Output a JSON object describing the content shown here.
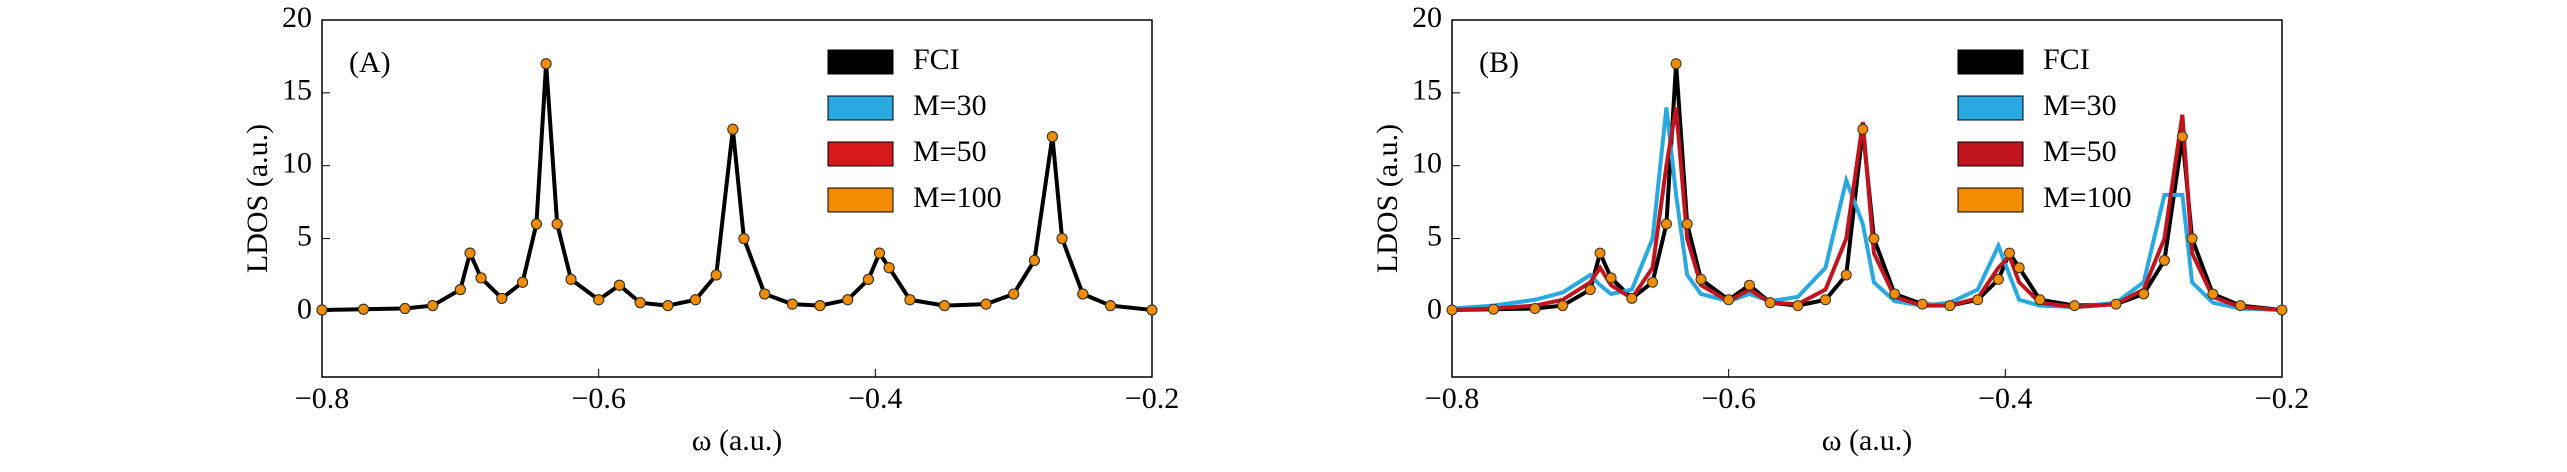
{
  "chart_data": [
    {
      "type": "line",
      "annotation": "(A)",
      "xlabel": "ω (a.u.)",
      "ylabel": "LDOS (a.u.)",
      "xlim": [
        -0.8,
        -0.2
      ],
      "ylim": [
        -4.5,
        20
      ],
      "xticks": [
        {
          "value": -0.8,
          "label": "−0.8"
        },
        {
          "value": -0.6,
          "label": "−0.6"
        },
        {
          "value": -0.4,
          "label": "−0.4"
        },
        {
          "value": -0.2,
          "label": "−0.2"
        }
      ],
      "yticks": [
        0,
        5,
        10,
        15,
        20
      ],
      "legend": "upper right",
      "x": [
        -0.8,
        -0.77,
        -0.74,
        -0.72,
        -0.7,
        -0.693,
        -0.685,
        -0.67,
        -0.655,
        -0.645,
        -0.638,
        -0.63,
        -0.62,
        -0.6,
        -0.585,
        -0.57,
        -0.55,
        -0.53,
        -0.515,
        -0.503,
        -0.495,
        -0.48,
        -0.46,
        -0.44,
        -0.42,
        -0.405,
        -0.397,
        -0.39,
        -0.375,
        -0.35,
        -0.32,
        -0.3,
        -0.285,
        -0.272,
        -0.265,
        -0.25,
        -0.23,
        -0.2
      ],
      "series": [
        {
          "name": "FCI",
          "color": "#000000",
          "style": "line",
          "values": [
            0.1,
            0.15,
            0.2,
            0.4,
            1.5,
            4,
            2.3,
            0.9,
            2,
            6,
            17,
            6,
            2.2,
            0.8,
            1.8,
            0.6,
            0.4,
            0.8,
            2.5,
            12.5,
            5,
            1.2,
            0.5,
            0.4,
            0.8,
            2.2,
            4,
            3,
            0.8,
            0.4,
            0.5,
            1.2,
            3.5,
            12,
            5,
            1.2,
            0.4,
            0.1
          ]
        },
        {
          "name": "M=30",
          "color": "#29a9e0",
          "style": "markers",
          "values": [
            0.1,
            0.15,
            0.2,
            0.4,
            1.5,
            4,
            2.3,
            0.9,
            2,
            6,
            17,
            6,
            2.2,
            0.8,
            1.8,
            0.6,
            0.4,
            0.8,
            2.5,
            12.5,
            5,
            1.2,
            0.5,
            0.4,
            0.8,
            2.2,
            4,
            3,
            0.8,
            0.4,
            0.5,
            1.2,
            3.5,
            12,
            5,
            1.2,
            0.4,
            0.1
          ]
        },
        {
          "name": "M=50",
          "color": "#d7191c",
          "style": "markers",
          "values": [
            0.1,
            0.15,
            0.2,
            0.4,
            1.5,
            4,
            2.3,
            0.9,
            2,
            6,
            17,
            6,
            2.2,
            0.8,
            1.8,
            0.6,
            0.4,
            0.8,
            2.5,
            12.5,
            5,
            1.2,
            0.5,
            0.4,
            0.8,
            2.2,
            4,
            3,
            0.8,
            0.4,
            0.5,
            1.2,
            3.5,
            12,
            5,
            1.2,
            0.4,
            0.1
          ]
        },
        {
          "name": "M=100",
          "color": "#f28c00",
          "style": "markers",
          "values": [
            0.1,
            0.15,
            0.2,
            0.4,
            1.5,
            4,
            2.3,
            0.9,
            2,
            6,
            17,
            6,
            2.2,
            0.8,
            1.8,
            0.6,
            0.4,
            0.8,
            2.5,
            12.5,
            5,
            1.2,
            0.5,
            0.4,
            0.8,
            2.2,
            4,
            3,
            0.8,
            0.4,
            0.5,
            1.2,
            3.5,
            12,
            5,
            1.2,
            0.4,
            0.1
          ]
        }
      ]
    },
    {
      "type": "line",
      "annotation": "(B)",
      "xlabel": "ω (a.u.)",
      "ylabel": "LDOS (a.u.)",
      "xlim": [
        -0.8,
        -0.2
      ],
      "ylim": [
        -4.5,
        20
      ],
      "xticks": [
        {
          "value": -0.8,
          "label": "−0.8"
        },
        {
          "value": -0.6,
          "label": "−0.6"
        },
        {
          "value": -0.4,
          "label": "−0.4"
        },
        {
          "value": -0.2,
          "label": "−0.2"
        }
      ],
      "yticks": [
        0,
        5,
        10,
        15,
        20
      ],
      "legend": "upper right",
      "x": [
        -0.8,
        -0.77,
        -0.74,
        -0.72,
        -0.7,
        -0.693,
        -0.685,
        -0.67,
        -0.655,
        -0.645,
        -0.638,
        -0.63,
        -0.62,
        -0.6,
        -0.585,
        -0.57,
        -0.55,
        -0.53,
        -0.515,
        -0.503,
        -0.495,
        -0.48,
        -0.46,
        -0.44,
        -0.42,
        -0.405,
        -0.397,
        -0.39,
        -0.375,
        -0.35,
        -0.32,
        -0.3,
        -0.285,
        -0.272,
        -0.265,
        -0.25,
        -0.23,
        -0.2
      ],
      "series": [
        {
          "name": "FCI",
          "color": "#000000",
          "style": "line",
          "values": [
            0.1,
            0.15,
            0.2,
            0.4,
            1.5,
            4,
            2.3,
            0.9,
            2,
            6,
            17,
            6,
            2.2,
            0.8,
            1.8,
            0.6,
            0.4,
            0.8,
            2.5,
            12.5,
            5,
            1.2,
            0.5,
            0.4,
            0.8,
            2.2,
            4,
            3,
            0.8,
            0.4,
            0.5,
            1.2,
            3.5,
            12,
            5,
            1.2,
            0.4,
            0.1
          ]
        },
        {
          "name": "M=30",
          "color": "#29a9e0",
          "style": "line",
          "values": [
            0.2,
            0.4,
            0.8,
            1.3,
            2.5,
            1.8,
            1.2,
            1.5,
            5,
            14,
            8,
            2.5,
            1.2,
            0.7,
            1.2,
            0.7,
            1,
            3,
            9,
            6,
            2,
            0.7,
            0.4,
            0.6,
            1.5,
            4.5,
            2.5,
            0.8,
            0.4,
            0.3,
            0.6,
            2,
            8,
            8,
            2,
            0.6,
            0.2,
            0.1
          ]
        },
        {
          "name": "M=50",
          "color": "#c0141e",
          "style": "line",
          "values": [
            0.1,
            0.2,
            0.4,
            0.8,
            2,
            3,
            1.8,
            0.9,
            3,
            10,
            14,
            5,
            1.8,
            0.7,
            1.5,
            0.6,
            0.5,
            1.5,
            5,
            13,
            4,
            1,
            0.4,
            0.4,
            0.9,
            3,
            3.8,
            2,
            0.6,
            0.3,
            0.5,
            1.5,
            5,
            13.5,
            4,
            1,
            0.3,
            0.1
          ]
        },
        {
          "name": "M=100",
          "color": "#f28c00",
          "style": "markers",
          "values": [
            0.1,
            0.15,
            0.2,
            0.4,
            1.5,
            4,
            2.3,
            0.9,
            2,
            6,
            17,
            6,
            2.2,
            0.8,
            1.8,
            0.6,
            0.4,
            0.8,
            2.5,
            12.5,
            5,
            1.2,
            0.5,
            0.4,
            0.8,
            2.2,
            4,
            3,
            0.8,
            0.4,
            0.5,
            1.2,
            3.5,
            12,
            5,
            1.2,
            0.4,
            0.1
          ]
        }
      ]
    }
  ]
}
